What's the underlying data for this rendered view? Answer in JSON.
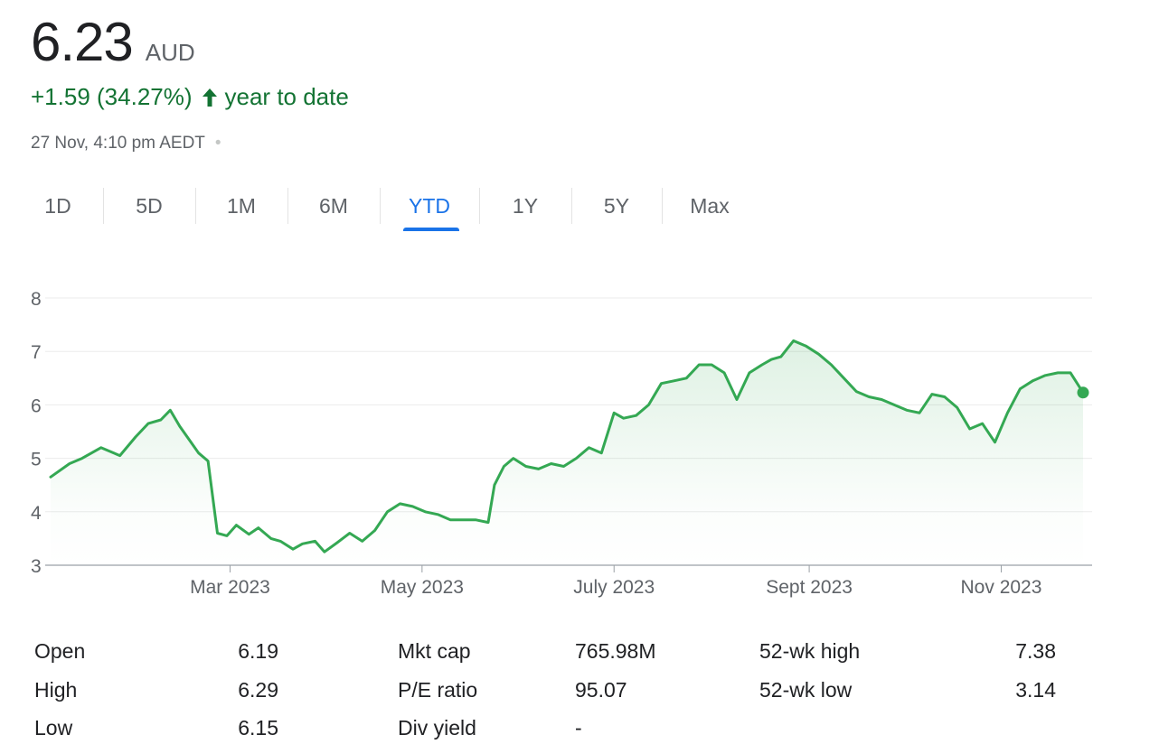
{
  "quote": {
    "price": "6.23",
    "currency": "AUD",
    "change": "+1.59 (34.27%)",
    "change_period": "year to date",
    "timestamp": "27 Nov, 4:10 pm AEDT",
    "timestamp_separator": "•"
  },
  "tabs": [
    {
      "label": "1D",
      "active": false
    },
    {
      "label": "5D",
      "active": false
    },
    {
      "label": "1M",
      "active": false
    },
    {
      "label": "6M",
      "active": false
    },
    {
      "label": "YTD",
      "active": true
    },
    {
      "label": "1Y",
      "active": false
    },
    {
      "label": "5Y",
      "active": false
    },
    {
      "label": "Max",
      "active": false
    }
  ],
  "colors": {
    "line": "#34a853",
    "positive_text": "#137333",
    "active_tab": "#1a73e8"
  },
  "chart_data": {
    "type": "area",
    "ylim": [
      3,
      8
    ],
    "yticks": [
      3,
      4,
      5,
      6,
      7,
      8
    ],
    "grid": true,
    "xlim": [
      "2023-01-03",
      "2023-11-27"
    ],
    "xticks": [
      {
        "label": "Mar 2023",
        "date": "2023-03-01"
      },
      {
        "label": "May 2023",
        "date": "2023-05-01"
      },
      {
        "label": "July 2023",
        "date": "2023-07-01"
      },
      {
        "label": "Sept 2023",
        "date": "2023-09-01"
      },
      {
        "label": "Nov 2023",
        "date": "2023-11-01"
      }
    ],
    "series": [
      {
        "x": [
          "2023-01-03",
          "2023-01-09",
          "2023-01-13",
          "2023-01-19",
          "2023-01-25",
          "2023-01-30",
          "2023-02-03",
          "2023-02-07",
          "2023-02-10",
          "2023-02-13",
          "2023-02-16",
          "2023-02-19",
          "2023-02-22",
          "2023-02-25",
          "2023-02-28",
          "2023-03-03",
          "2023-03-07",
          "2023-03-10",
          "2023-03-14",
          "2023-03-17",
          "2023-03-21",
          "2023-03-24",
          "2023-03-28",
          "2023-03-31",
          "2023-04-04",
          "2023-04-08",
          "2023-04-12",
          "2023-04-16",
          "2023-04-20",
          "2023-04-24",
          "2023-04-28",
          "2023-05-02",
          "2023-05-06",
          "2023-05-10",
          "2023-05-14",
          "2023-05-18",
          "2023-05-22",
          "2023-05-24",
          "2023-05-27",
          "2023-05-30",
          "2023-06-03",
          "2023-06-07",
          "2023-06-11",
          "2023-06-15",
          "2023-06-19",
          "2023-06-23",
          "2023-06-27",
          "2023-07-01",
          "2023-07-04",
          "2023-07-08",
          "2023-07-12",
          "2023-07-16",
          "2023-07-20",
          "2023-07-24",
          "2023-07-28",
          "2023-08-01",
          "2023-08-05",
          "2023-08-09",
          "2023-08-13",
          "2023-08-17",
          "2023-08-20",
          "2023-08-23",
          "2023-08-27",
          "2023-08-31",
          "2023-09-04",
          "2023-09-08",
          "2023-09-12",
          "2023-09-16",
          "2023-09-20",
          "2023-09-24",
          "2023-09-28",
          "2023-10-02",
          "2023-10-06",
          "2023-10-10",
          "2023-10-14",
          "2023-10-18",
          "2023-10-22",
          "2023-10-26",
          "2023-10-30",
          "2023-11-03",
          "2023-11-07",
          "2023-11-11",
          "2023-11-15",
          "2023-11-19",
          "2023-11-23",
          "2023-11-27"
        ],
        "y": [
          4.65,
          4.9,
          5.0,
          5.2,
          5.05,
          5.4,
          5.65,
          5.72,
          5.9,
          5.6,
          5.35,
          5.1,
          4.95,
          3.6,
          3.55,
          3.75,
          3.58,
          3.7,
          3.5,
          3.45,
          3.3,
          3.4,
          3.45,
          3.25,
          3.42,
          3.6,
          3.45,
          3.65,
          4.0,
          4.15,
          4.1,
          4.0,
          3.95,
          3.85,
          3.85,
          3.85,
          3.8,
          4.5,
          4.85,
          5.0,
          4.85,
          4.8,
          4.9,
          4.85,
          5.0,
          5.2,
          5.1,
          5.85,
          5.75,
          5.8,
          6.0,
          6.4,
          6.45,
          6.5,
          6.75,
          6.75,
          6.6,
          6.1,
          6.6,
          6.75,
          6.85,
          6.9,
          7.2,
          7.1,
          6.95,
          6.75,
          6.5,
          6.25,
          6.15,
          6.1,
          6.0,
          5.9,
          5.85,
          6.2,
          6.15,
          5.95,
          5.55,
          5.65,
          5.3,
          5.85,
          6.3,
          6.45,
          6.55,
          6.6,
          6.6,
          6.23
        ]
      }
    ]
  },
  "stats": [
    {
      "label": "Open",
      "value": "6.19"
    },
    {
      "label": "High",
      "value": "6.29"
    },
    {
      "label": "Low",
      "value": "6.15"
    },
    {
      "label": "Mkt cap",
      "value": "765.98M"
    },
    {
      "label": "P/E ratio",
      "value": "95.07"
    },
    {
      "label": "Div yield",
      "value": "-"
    },
    {
      "label": "52-wk high",
      "value": "7.38"
    },
    {
      "label": "52-wk low",
      "value": "3.14"
    }
  ]
}
